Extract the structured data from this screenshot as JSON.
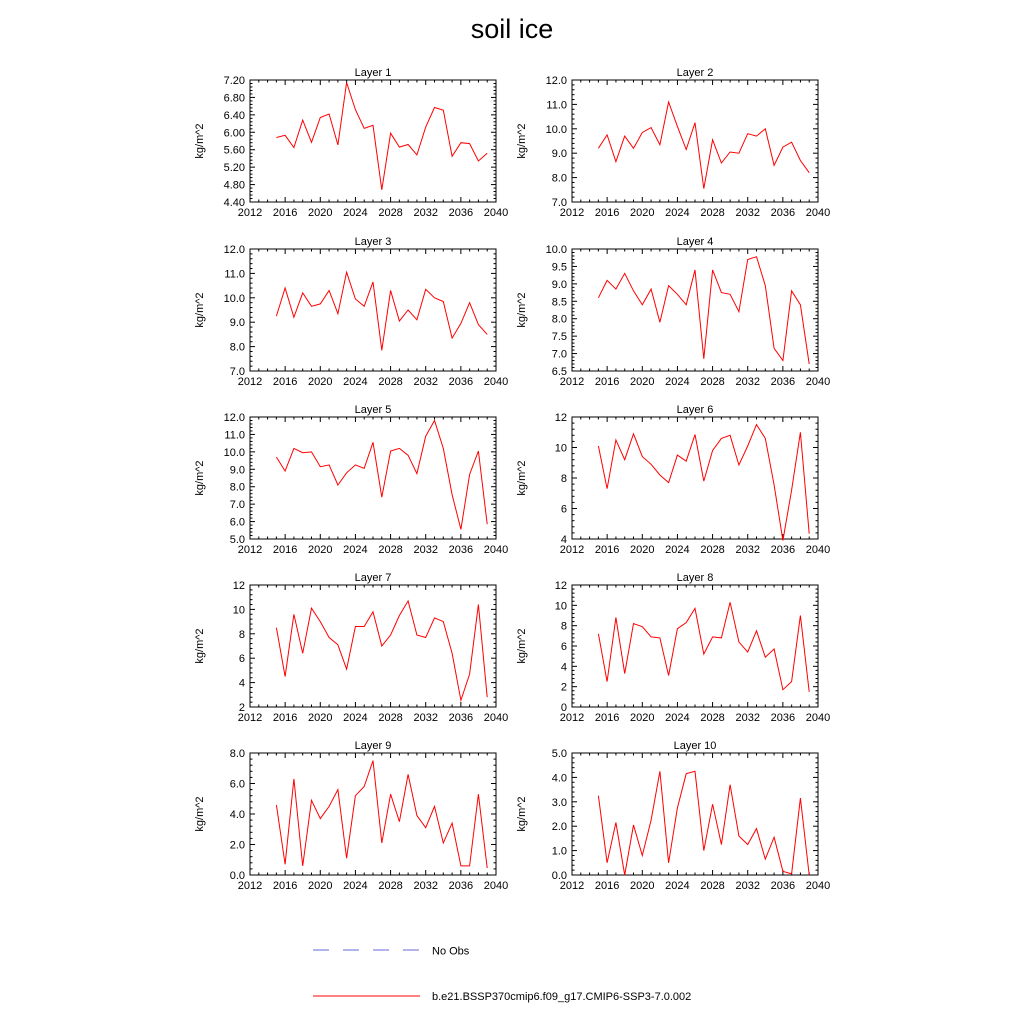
{
  "title": "soil ice",
  "colors": {
    "model": "#ff0000",
    "obs": "#6a6ad8",
    "axis": "#000000"
  },
  "legend": {
    "obs_label": "No Obs",
    "model_label": "b.e21.BSSP370cmip6.f09_g17.CMIP6-SSP3-7.0.002"
  },
  "chart_data": [
    {
      "type": "line",
      "title": "Layer 1",
      "ylabel": "kg/m^2",
      "xlim": [
        2012,
        2040
      ],
      "ylim": [
        4.4,
        7.2
      ],
      "yticks": [
        "4.40",
        "4.80",
        "5.20",
        "5.60",
        "6.00",
        "6.40",
        "6.80",
        "7.20"
      ],
      "xticks": [
        "2012",
        "2016",
        "2020",
        "2024",
        "2028",
        "2032",
        "2036",
        "2040"
      ],
      "x": [
        2015,
        2016,
        2017,
        2018,
        2019,
        2020,
        2021,
        2022,
        2023,
        2024,
        2025,
        2026,
        2027,
        2028,
        2029,
        2030,
        2031,
        2032,
        2033,
        2034,
        2035,
        2036,
        2037,
        2038,
        2039
      ],
      "series": [
        {
          "values": [
            5.88,
            5.93,
            5.65,
            6.28,
            5.77,
            6.34,
            6.42,
            5.71,
            7.14,
            6.52,
            6.09,
            6.16,
            4.68,
            5.98,
            5.66,
            5.72,
            5.48,
            6.12,
            6.57,
            6.51,
            5.45,
            5.76,
            5.74,
            5.34,
            5.52
          ]
        }
      ]
    },
    {
      "type": "line",
      "title": "Layer 2",
      "ylabel": "kg/m^2",
      "xlim": [
        2012,
        2040
      ],
      "ylim": [
        7.0,
        12.0
      ],
      "yticks": [
        "7.0",
        "8.0",
        "9.0",
        "10.0",
        "11.0",
        "12.0"
      ],
      "xticks": [
        "2012",
        "2016",
        "2020",
        "2024",
        "2028",
        "2032",
        "2036",
        "2040"
      ],
      "x": [
        2015,
        2016,
        2017,
        2018,
        2019,
        2020,
        2021,
        2022,
        2023,
        2024,
        2025,
        2026,
        2027,
        2028,
        2029,
        2030,
        2031,
        2032,
        2033,
        2034,
        2035,
        2036,
        2037,
        2038,
        2039
      ],
      "series": [
        {
          "values": [
            9.2,
            9.75,
            8.65,
            9.7,
            9.2,
            9.85,
            10.05,
            9.35,
            11.1,
            10.1,
            9.15,
            10.25,
            7.55,
            9.55,
            8.6,
            9.05,
            9.0,
            9.8,
            9.7,
            10.0,
            8.5,
            9.25,
            9.45,
            8.7,
            8.2
          ]
        }
      ]
    },
    {
      "type": "line",
      "title": "Layer 3",
      "ylabel": "kg/m^2",
      "xlim": [
        2012,
        2040
      ],
      "ylim": [
        7.0,
        12.0
      ],
      "yticks": [
        "7.0",
        "8.0",
        "9.0",
        "10.0",
        "11.0",
        "12.0"
      ],
      "xticks": [
        "2012",
        "2016",
        "2020",
        "2024",
        "2028",
        "2032",
        "2036",
        "2040"
      ],
      "x": [
        2015,
        2016,
        2017,
        2018,
        2019,
        2020,
        2021,
        2022,
        2023,
        2024,
        2025,
        2026,
        2027,
        2028,
        2029,
        2030,
        2031,
        2032,
        2033,
        2034,
        2035,
        2036,
        2037,
        2038,
        2039
      ],
      "series": [
        {
          "values": [
            9.25,
            10.4,
            9.2,
            10.2,
            9.65,
            9.75,
            10.3,
            9.35,
            11.05,
            9.95,
            9.65,
            10.65,
            7.85,
            10.3,
            9.05,
            9.5,
            9.1,
            10.35,
            10.0,
            9.85,
            8.35,
            8.95,
            9.8,
            8.9,
            8.5
          ]
        }
      ]
    },
    {
      "type": "line",
      "title": "Layer 4",
      "ylabel": "kg/m^2",
      "xlim": [
        2012,
        2040
      ],
      "ylim": [
        6.5,
        10.0
      ],
      "yticks": [
        "6.5",
        "7.0",
        "7.5",
        "8.0",
        "8.5",
        "9.0",
        "9.5",
        "10.0"
      ],
      "xticks": [
        "2012",
        "2016",
        "2020",
        "2024",
        "2028",
        "2032",
        "2036",
        "2040"
      ],
      "x": [
        2015,
        2016,
        2017,
        2018,
        2019,
        2020,
        2021,
        2022,
        2023,
        2024,
        2025,
        2026,
        2027,
        2028,
        2029,
        2030,
        2031,
        2032,
        2033,
        2034,
        2035,
        2036,
        2037,
        2038,
        2039
      ],
      "series": [
        {
          "values": [
            8.6,
            9.1,
            8.85,
            9.3,
            8.8,
            8.4,
            8.85,
            7.9,
            8.95,
            8.7,
            8.4,
            9.4,
            6.85,
            9.4,
            8.75,
            8.7,
            8.2,
            9.7,
            9.78,
            8.95,
            7.15,
            6.8,
            8.8,
            8.4,
            6.7
          ]
        }
      ]
    },
    {
      "type": "line",
      "title": "Layer 5",
      "ylabel": "kg/m^2",
      "xlim": [
        2012,
        2040
      ],
      "ylim": [
        5.0,
        12.0
      ],
      "yticks": [
        "5.0",
        "6.0",
        "7.0",
        "8.0",
        "9.0",
        "10.0",
        "11.0",
        "12.0"
      ],
      "xticks": [
        "2012",
        "2016",
        "2020",
        "2024",
        "2028",
        "2032",
        "2036",
        "2040"
      ],
      "x": [
        2015,
        2016,
        2017,
        2018,
        2019,
        2020,
        2021,
        2022,
        2023,
        2024,
        2025,
        2026,
        2027,
        2028,
        2029,
        2030,
        2031,
        2032,
        2033,
        2034,
        2035,
        2036,
        2037,
        2038,
        2039
      ],
      "series": [
        {
          "values": [
            9.7,
            8.9,
            10.2,
            9.95,
            10.0,
            9.15,
            9.25,
            8.1,
            8.8,
            9.25,
            9.05,
            10.55,
            7.4,
            10.05,
            10.2,
            9.8,
            8.75,
            10.9,
            11.8,
            10.2,
            7.55,
            5.55,
            8.7,
            10.05,
            5.85
          ]
        }
      ]
    },
    {
      "type": "line",
      "title": "Layer 6",
      "ylabel": "kg/m^2",
      "xlim": [
        2012,
        2040
      ],
      "ylim": [
        4,
        12
      ],
      "yticks": [
        "4",
        "6",
        "8",
        "10",
        "12"
      ],
      "xticks": [
        "2012",
        "2016",
        "2020",
        "2024",
        "2028",
        "2032",
        "2036",
        "2040"
      ],
      "x": [
        2015,
        2016,
        2017,
        2018,
        2019,
        2020,
        2021,
        2022,
        2023,
        2024,
        2025,
        2026,
        2027,
        2028,
        2029,
        2030,
        2031,
        2032,
        2033,
        2034,
        2035,
        2036,
        2037,
        2038,
        2039
      ],
      "series": [
        {
          "values": [
            10.1,
            7.3,
            10.5,
            9.2,
            10.9,
            9.4,
            8.9,
            8.2,
            7.7,
            9.5,
            9.1,
            10.85,
            7.8,
            9.8,
            10.6,
            10.8,
            8.85,
            10.1,
            11.5,
            10.6,
            7.55,
            3.9,
            7.2,
            11.0,
            4.35
          ]
        }
      ]
    },
    {
      "type": "line",
      "title": "Layer 7",
      "ylabel": "kg/m^2",
      "xlim": [
        2012,
        2040
      ],
      "ylim": [
        2,
        12
      ],
      "yticks": [
        "2",
        "4",
        "6",
        "8",
        "10",
        "12"
      ],
      "xticks": [
        "2012",
        "2016",
        "2020",
        "2024",
        "2028",
        "2032",
        "2036",
        "2040"
      ],
      "x": [
        2015,
        2016,
        2017,
        2018,
        2019,
        2020,
        2021,
        2022,
        2023,
        2024,
        2025,
        2026,
        2027,
        2028,
        2029,
        2030,
        2031,
        2032,
        2033,
        2034,
        2035,
        2036,
        2037,
        2038,
        2039
      ],
      "series": [
        {
          "values": [
            8.5,
            4.5,
            9.6,
            6.4,
            10.1,
            9.0,
            7.7,
            7.1,
            5.1,
            8.6,
            8.6,
            9.8,
            7.0,
            7.9,
            9.5,
            10.7,
            7.9,
            7.7,
            9.3,
            9.0,
            6.4,
            2.55,
            4.7,
            10.4,
            2.8
          ]
        }
      ]
    },
    {
      "type": "line",
      "title": "Layer 8",
      "ylabel": "kg/m^2",
      "xlim": [
        2012,
        2040
      ],
      "ylim": [
        0,
        12
      ],
      "yticks": [
        "0",
        "2",
        "4",
        "6",
        "8",
        "10",
        "12"
      ],
      "xticks": [
        "2012",
        "2016",
        "2020",
        "2024",
        "2028",
        "2032",
        "2036",
        "2040"
      ],
      "x": [
        2015,
        2016,
        2017,
        2018,
        2019,
        2020,
        2021,
        2022,
        2023,
        2024,
        2025,
        2026,
        2027,
        2028,
        2029,
        2030,
        2031,
        2032,
        2033,
        2034,
        2035,
        2036,
        2037,
        2038,
        2039
      ],
      "series": [
        {
          "values": [
            7.2,
            2.5,
            8.8,
            3.3,
            8.2,
            7.9,
            6.9,
            6.8,
            3.1,
            7.7,
            8.3,
            9.7,
            5.2,
            6.9,
            6.8,
            10.3,
            6.4,
            5.4,
            7.5,
            4.9,
            5.7,
            1.7,
            2.5,
            9.0,
            1.5
          ]
        }
      ]
    },
    {
      "type": "line",
      "title": "Layer 9",
      "ylabel": "kg/m^2",
      "xlim": [
        2012,
        2040
      ],
      "ylim": [
        0.0,
        8.0
      ],
      "yticks": [
        "0.0",
        "2.0",
        "4.0",
        "6.0",
        "8.0"
      ],
      "xticks": [
        "2012",
        "2016",
        "2020",
        "2024",
        "2028",
        "2032",
        "2036",
        "2040"
      ],
      "x": [
        2015,
        2016,
        2017,
        2018,
        2019,
        2020,
        2021,
        2022,
        2023,
        2024,
        2025,
        2026,
        2027,
        2028,
        2029,
        2030,
        2031,
        2032,
        2033,
        2034,
        2035,
        2036,
        2037,
        2038,
        2039
      ],
      "series": [
        {
          "values": [
            4.6,
            0.7,
            6.3,
            0.6,
            4.9,
            3.7,
            4.5,
            5.6,
            1.1,
            5.2,
            5.8,
            7.5,
            2.1,
            5.3,
            3.5,
            6.6,
            3.9,
            3.1,
            4.5,
            2.1,
            3.4,
            0.6,
            0.6,
            5.3,
            0.45
          ]
        }
      ]
    },
    {
      "type": "line",
      "title": "Layer 10",
      "ylabel": "kg/m^2",
      "xlim": [
        2012,
        2040
      ],
      "ylim": [
        0.0,
        5.0
      ],
      "yticks": [
        "0.0",
        "1.0",
        "2.0",
        "3.0",
        "4.0",
        "5.0"
      ],
      "xticks": [
        "2012",
        "2016",
        "2020",
        "2024",
        "2028",
        "2032",
        "2036",
        "2040"
      ],
      "x": [
        2015,
        2016,
        2017,
        2018,
        2019,
        2020,
        2021,
        2022,
        2023,
        2024,
        2025,
        2026,
        2027,
        2028,
        2029,
        2030,
        2031,
        2032,
        2033,
        2034,
        2035,
        2036,
        2037,
        2038,
        2039
      ],
      "series": [
        {
          "values": [
            3.25,
            0.5,
            2.15,
            0.0,
            2.05,
            0.8,
            2.25,
            4.25,
            0.5,
            2.75,
            4.15,
            4.25,
            1.0,
            2.9,
            1.25,
            3.7,
            1.6,
            1.25,
            1.9,
            0.65,
            1.55,
            0.15,
            0.05,
            3.15,
            0.0
          ]
        }
      ]
    }
  ]
}
